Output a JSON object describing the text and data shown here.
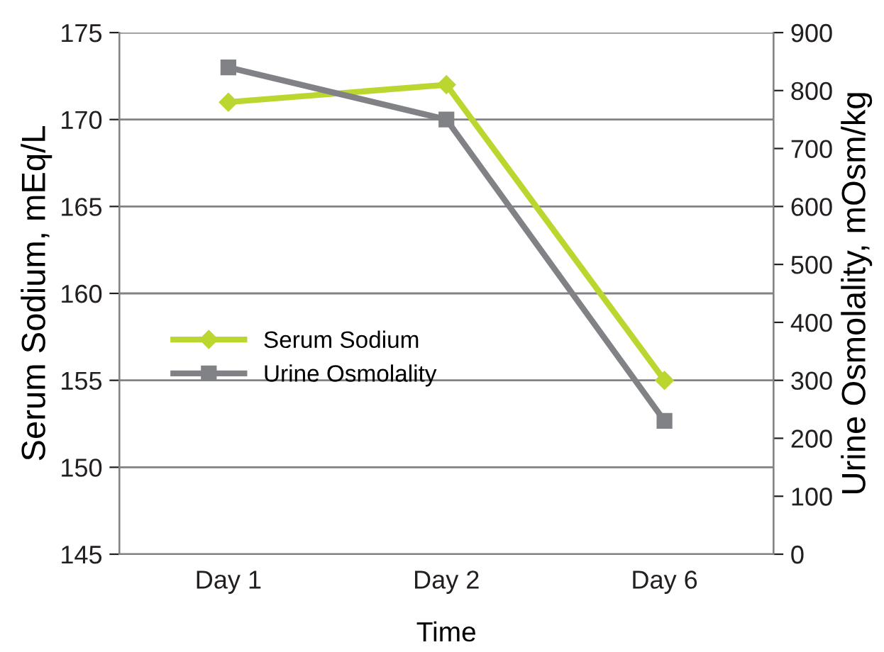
{
  "chart_data": {
    "type": "line",
    "xlabel": "Time",
    "ylabel": "Serum Sodium, mEq/L",
    "y2label": "Urine Osmolality, mOsm/kg",
    "categories": [
      "Day 1",
      "Day 2",
      "Day 6"
    ],
    "series": [
      {
        "name": "Serum Sodium",
        "color": "#bcd630",
        "marker": "diamond",
        "values": [
          171,
          172,
          155
        ]
      },
      {
        "name": "Urine Osmolality",
        "color": "#808285",
        "marker": "square",
        "axis": "y2",
        "values": [
          840,
          750,
          230
        ]
      }
    ],
    "ylim": [
      145,
      175
    ],
    "yticks": [
      145,
      150,
      155,
      160,
      165,
      170,
      175
    ],
    "y2lim": [
      0,
      900
    ],
    "y2ticks": [
      0,
      100,
      200,
      300,
      400,
      500,
      600,
      700,
      800,
      900
    ],
    "grid": "y",
    "legend": "center left",
    "line_style": "solid"
  }
}
